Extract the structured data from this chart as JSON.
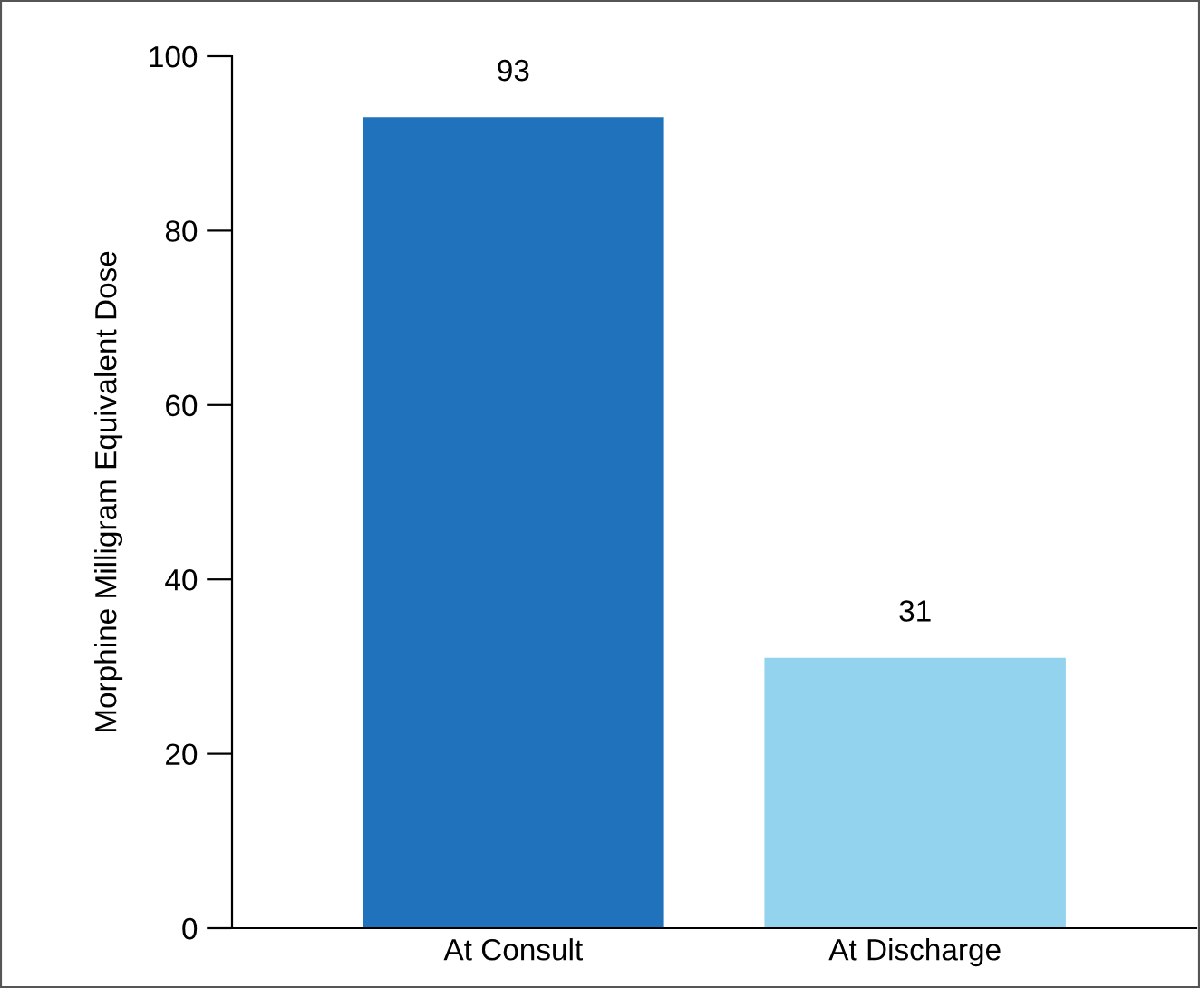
{
  "chart_data": {
    "type": "bar",
    "ylabel": "Morphine Milligram Equivalent Dose",
    "categories": [
      "At Consult",
      "At Discharge"
    ],
    "values": [
      93,
      31
    ],
    "colors": [
      "#1f72bb",
      "#93d3ee"
    ],
    "ylim": [
      0,
      100
    ],
    "yticks": [
      0,
      20,
      40,
      60,
      80,
      100
    ],
    "data_labels": true,
    "grid": false,
    "legend": false
  }
}
